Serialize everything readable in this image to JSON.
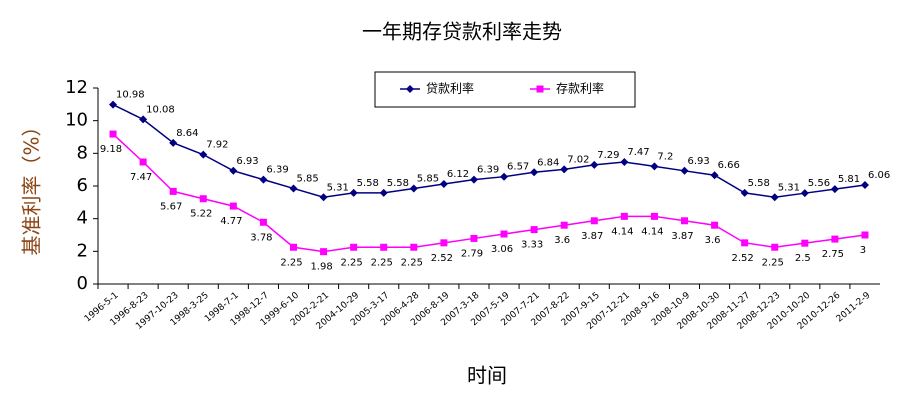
{
  "chart_data": {
    "type": "line",
    "title": "一年期存贷款利率走势",
    "xlabel": "时间",
    "ylabel": "基准利率（%）",
    "categories": [
      "1996-5-1",
      "1996-8-23",
      "1997-10-23",
      "1998-3-25",
      "1998-7-1",
      "1998-12-7",
      "1999-6-10",
      "2002-2-21",
      "2004-10-29",
      "2005-3-17",
      "2006-4-28",
      "2006-8-19",
      "2007-3-18",
      "2007-5-19",
      "2007-7-21",
      "2007-8-22",
      "2007-9-15",
      "2007-12-21",
      "2008-9-16",
      "2008-10-9",
      "2008-10-30",
      "2008-11-27",
      "2008-12-23",
      "2010-10-20",
      "2010-12-26",
      "2011-2-9"
    ],
    "series": [
      {
        "name": "贷款利率",
        "color": "#000080",
        "marker": "diamond",
        "values": [
          10.98,
          10.08,
          8.64,
          7.92,
          6.93,
          6.39,
          5.85,
          5.31,
          5.58,
          5.58,
          5.85,
          6.12,
          6.39,
          6.57,
          6.84,
          7.02,
          7.29,
          7.47,
          7.2,
          6.93,
          6.66,
          5.58,
          5.31,
          5.56,
          5.81,
          6.06
        ]
      },
      {
        "name": "存款利率",
        "color": "#ff00ff",
        "marker": "square",
        "values": [
          9.18,
          7.47,
          5.67,
          5.22,
          4.77,
          3.78,
          2.25,
          1.98,
          2.25,
          2.25,
          2.25,
          2.52,
          2.79,
          3.06,
          3.33,
          3.6,
          3.87,
          4.14,
          4.14,
          3.87,
          3.6,
          2.52,
          2.25,
          2.5,
          2.75,
          3
        ]
      }
    ],
    "ylim": [
      0,
      12
    ],
    "yticks": [
      0,
      2,
      4,
      6,
      8,
      10,
      12
    ],
    "grid": false,
    "legend": "top"
  }
}
